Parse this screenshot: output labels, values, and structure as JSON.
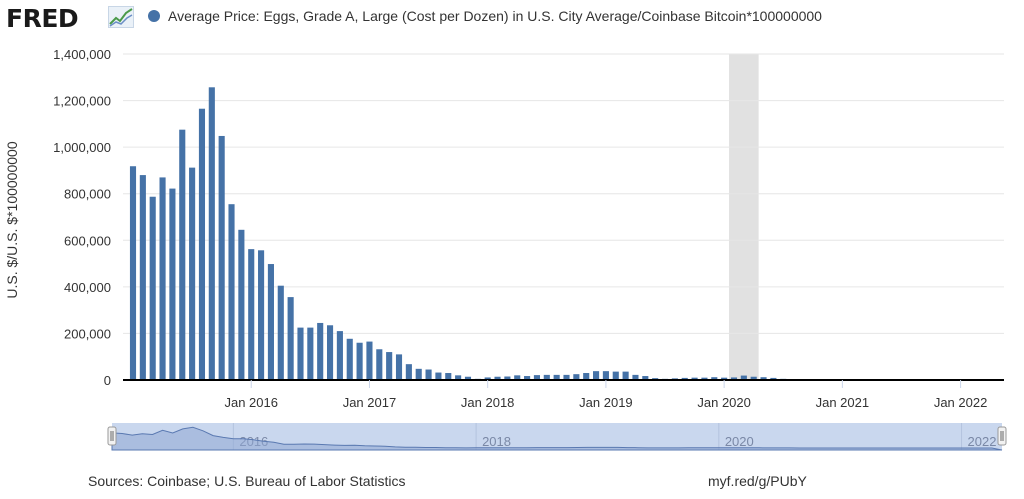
{
  "header": {
    "logo_text": "FRED",
    "legend_label": "Average Price: Eggs, Grade A, Large (Cost per Dozen) in U.S. City Average/Coinbase Bitcoin*100000000",
    "series_color": "#4572a7"
  },
  "footer": {
    "sources": "Sources: Coinbase; U.S. Bureau of Labor Statistics",
    "link": "myf.red/g/PUbY"
  },
  "navigator": {
    "labels": [
      "2016",
      "2018",
      "2020",
      "2022"
    ]
  },
  "chart_data": {
    "type": "bar",
    "title": "Average Price: Eggs, Grade A, Large (Cost per Dozen) in U.S. City Average/Coinbase Bitcoin*100000000",
    "ylabel": "U.S. $/U.S. $*100000000",
    "xlabel": "",
    "ylim": [
      0,
      1400000
    ],
    "yticks": [
      0,
      200000,
      400000,
      600000,
      800000,
      1000000,
      1200000,
      1400000
    ],
    "ytick_labels": [
      "0",
      "200,000",
      "400,000",
      "600,000",
      "800,000",
      "1,000,000",
      "1,200,000",
      "1,400,000"
    ],
    "xticks": [
      "2016-01",
      "2017-01",
      "2018-01",
      "2019-01",
      "2020-01",
      "2021-01",
      "2022-01"
    ],
    "xtick_labels": [
      "Jan 2016",
      "Jan 2017",
      "Jan 2018",
      "Jan 2019",
      "Jan 2020",
      "Jan 2021",
      "Jan 2022"
    ],
    "xrange": [
      "2015-01",
      "2022-05"
    ],
    "grid": true,
    "legend_position": "top-left",
    "recession_shading": {
      "start": "2020-02",
      "end": "2020-04"
    },
    "series": [
      {
        "name": "Average Price: Eggs, Grade A, Large (Cost per Dozen) in U.S. City Average/Coinbase Bitcoin*100000000",
        "x": [
          "2015-01",
          "2015-02",
          "2015-03",
          "2015-04",
          "2015-05",
          "2015-06",
          "2015-07",
          "2015-08",
          "2015-09",
          "2015-10",
          "2015-11",
          "2015-12",
          "2016-01",
          "2016-02",
          "2016-03",
          "2016-04",
          "2016-05",
          "2016-06",
          "2016-07",
          "2016-08",
          "2016-09",
          "2016-10",
          "2016-11",
          "2016-12",
          "2017-01",
          "2017-02",
          "2017-03",
          "2017-04",
          "2017-05",
          "2017-06",
          "2017-07",
          "2017-08",
          "2017-09",
          "2017-10",
          "2017-11",
          "2017-12",
          "2018-01",
          "2018-02",
          "2018-03",
          "2018-04",
          "2018-05",
          "2018-06",
          "2018-07",
          "2018-08",
          "2018-09",
          "2018-10",
          "2018-11",
          "2018-12",
          "2019-01",
          "2019-02",
          "2019-03",
          "2019-04",
          "2019-05",
          "2019-06",
          "2019-07",
          "2019-08",
          "2019-09",
          "2019-10",
          "2019-11",
          "2019-12",
          "2020-01",
          "2020-02",
          "2020-03",
          "2020-04",
          "2020-05",
          "2020-06",
          "2020-07",
          "2020-08",
          "2020-09",
          "2020-10",
          "2020-11",
          "2020-12",
          "2021-01",
          "2021-02",
          "2021-03",
          "2021-04",
          "2021-05",
          "2021-06",
          "2021-07",
          "2021-08",
          "2021-09",
          "2021-10",
          "2021-11",
          "2021-12",
          "2022-01",
          "2022-02",
          "2022-03",
          "2022-04"
        ],
        "values": [
          918000,
          880000,
          787000,
          870000,
          822000,
          1075000,
          912000,
          1165000,
          1257000,
          1048000,
          755000,
          645000,
          562000,
          557000,
          498000,
          405000,
          356000,
          225000,
          225000,
          245000,
          235000,
          210000,
          177000,
          160000,
          165000,
          132000,
          120000,
          110000,
          68000,
          48000,
          45000,
          32000,
          30000,
          20000,
          14000,
          5000,
          11000,
          14000,
          15000,
          20000,
          17000,
          21000,
          22000,
          22000,
          22000,
          25000,
          30000,
          38000,
          38000,
          36000,
          36000,
          22000,
          17000,
          8000,
          5000,
          7000,
          9000,
          10000,
          10000,
          12000,
          10000,
          11000,
          19000,
          14000,
          12000,
          9000,
          5000,
          4000,
          3000,
          2500,
          1800,
          1200,
          1000,
          800,
          700,
          700,
          900,
          900,
          1000,
          900,
          900,
          700,
          700,
          900,
          1000,
          1100,
          1000,
          1200
        ]
      }
    ]
  }
}
